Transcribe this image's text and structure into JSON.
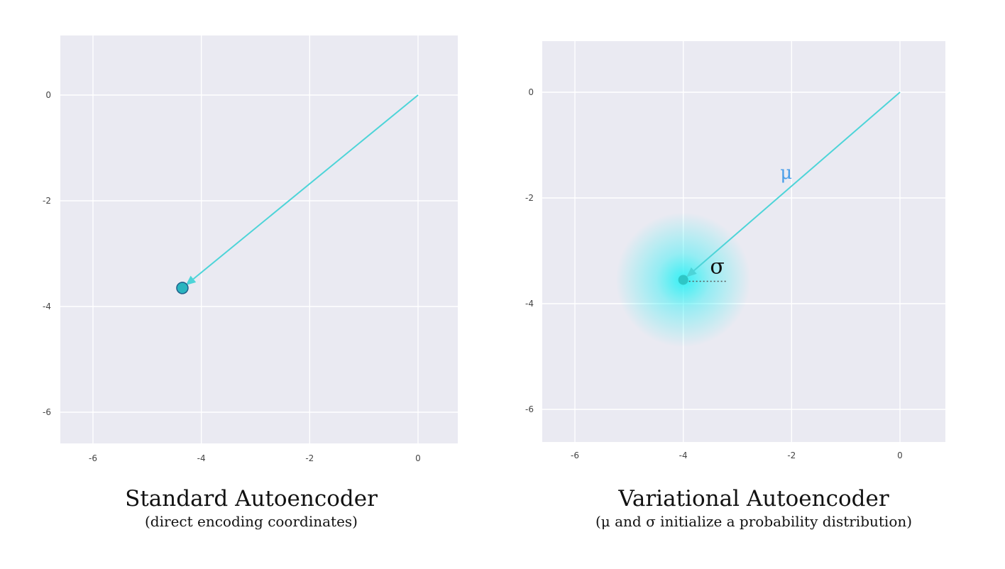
{
  "diagrams": [
    {
      "id": "standard",
      "title": "Standard Autoencoder",
      "subtitle": "(direct encoding coordinates)",
      "x_ticks": [
        "-6",
        "-4",
        "-2",
        "0"
      ],
      "y_ticks": [
        "0",
        "-2",
        "-4",
        "-6"
      ],
      "encoding_point": [
        -4.35,
        -3.65
      ],
      "arrow_color": "#4dd4d8",
      "point_color": "#2ab4bf"
    },
    {
      "id": "variational",
      "title": "Variational Autoencoder",
      "subtitle": "(μ and σ initialize a probability distribution)",
      "x_ticks": [
        "-6",
        "-4",
        "-2",
        "0"
      ],
      "y_ticks": [
        "0",
        "-2",
        "-4",
        "-6"
      ],
      "encoding_point": [
        -4.0,
        -3.55
      ],
      "mu_label": "μ",
      "sigma_label": "σ",
      "arrow_color": "#4dd4d8",
      "point_color": "#2ec6c6",
      "mu_color": "#4a9ee8",
      "glow_color": "#2ef0f4"
    }
  ],
  "colors": {
    "plot_background": "#eaeaf2",
    "grid": "#ffffff"
  }
}
